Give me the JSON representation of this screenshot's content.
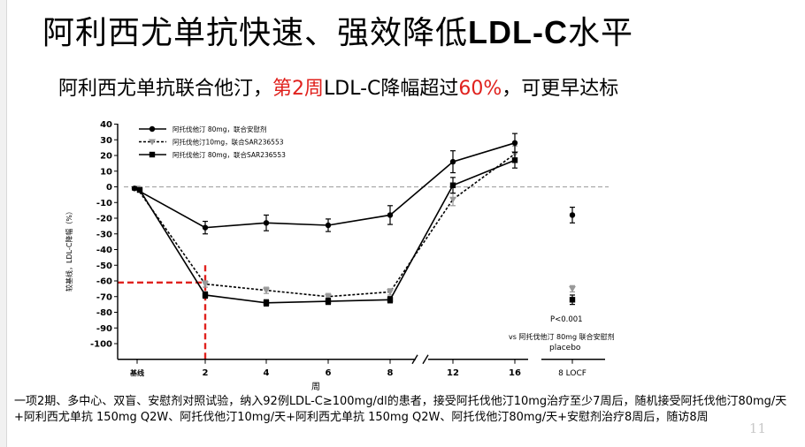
{
  "slide": {
    "title_prefix": "阿利西尤单抗快速、强效降低",
    "title_strong": "LDL-C",
    "title_suffix": "水平",
    "subtitle_part1": "阿利西尤单抗联合他汀，",
    "subtitle_red1": "第2周",
    "subtitle_part2": "LDL-C降幅超过",
    "subtitle_red2": "60%",
    "subtitle_part3": "，可更早达标",
    "footnote": "一项2期、多中心、双盲、安慰剂对照试验，纳入92例LDL-C≥100mg/dl的患者，接受阿托伐他汀10mg治疗至少7周后，随机接受阿托伐他汀80mg/天+阿利西尤单抗 150mg Q2W、阿托伐他汀10mg/天+阿利西尤单抗 150mg Q2W、阿托伐他汀80mg/天+安慰剂治疗8周后，随访8周",
    "page_number": "11",
    "accent_red": "#e0211d"
  },
  "chart_data": {
    "type": "line",
    "ylabel": "较基线，LDL-C降幅（%）",
    "xlabel": "周",
    "ylim": [
      -110,
      40
    ],
    "yticks": [
      40,
      30,
      20,
      10,
      0,
      -10,
      -20,
      -30,
      -40,
      -50,
      -60,
      -70,
      -80,
      -90,
      -100
    ],
    "ytick_labels": [
      "40",
      "30",
      "20",
      "10",
      "0",
      "-10",
      "-20",
      "-30",
      "-40",
      "-50",
      "-60",
      "-70",
      "-80",
      "-90",
      "-100"
    ],
    "x_categories": [
      "基线",
      "2",
      "4",
      "6",
      "8",
      "12",
      "16"
    ],
    "x_week_positions": [
      0,
      2,
      4,
      6,
      8,
      12,
      16
    ],
    "axis_break_between": [
      8,
      12
    ],
    "extra_category": "8 LOCF",
    "reference_line_y": 0,
    "highlight": {
      "week": 2,
      "value": -61,
      "color": "#e0211d"
    },
    "legend_position": "top-left",
    "series": [
      {
        "name": "阿托伐他汀 80mg，联合安慰剂",
        "marker": "circle",
        "line": "solid",
        "color": "#000000",
        "values": [
          -1,
          -26,
          -23,
          -24.5,
          -18,
          16,
          28
        ],
        "errors": [
          1,
          4,
          5,
          4,
          6,
          7,
          6
        ],
        "locf": -18,
        "locf_error": 5
      },
      {
        "name": "阿托伐他汀10mg，联合SAR236553",
        "marker": "triangle-down",
        "line": "dotted",
        "color": "#999999",
        "values": [
          -1,
          -62,
          -66,
          -70,
          -67,
          -8,
          21
        ],
        "errors": [
          1,
          2,
          2,
          2,
          2,
          4,
          5
        ],
        "locf": -65,
        "locf_error": 2
      },
      {
        "name": "阿托伐他汀 80mg，联合SAR236553",
        "marker": "square",
        "line": "solid",
        "color": "#000000",
        "values": [
          -2,
          -69,
          -74,
          -73,
          -72,
          1,
          17
        ],
        "errors": [
          1,
          2,
          2,
          2,
          2,
          5,
          5
        ],
        "locf": -72,
        "locf_error": 3
      }
    ],
    "annotation_p": "P<0.001",
    "annotation_vs": "vs 阿托伐他汀 80mg 联合安慰剂",
    "annotation_placebo": "placebo"
  }
}
